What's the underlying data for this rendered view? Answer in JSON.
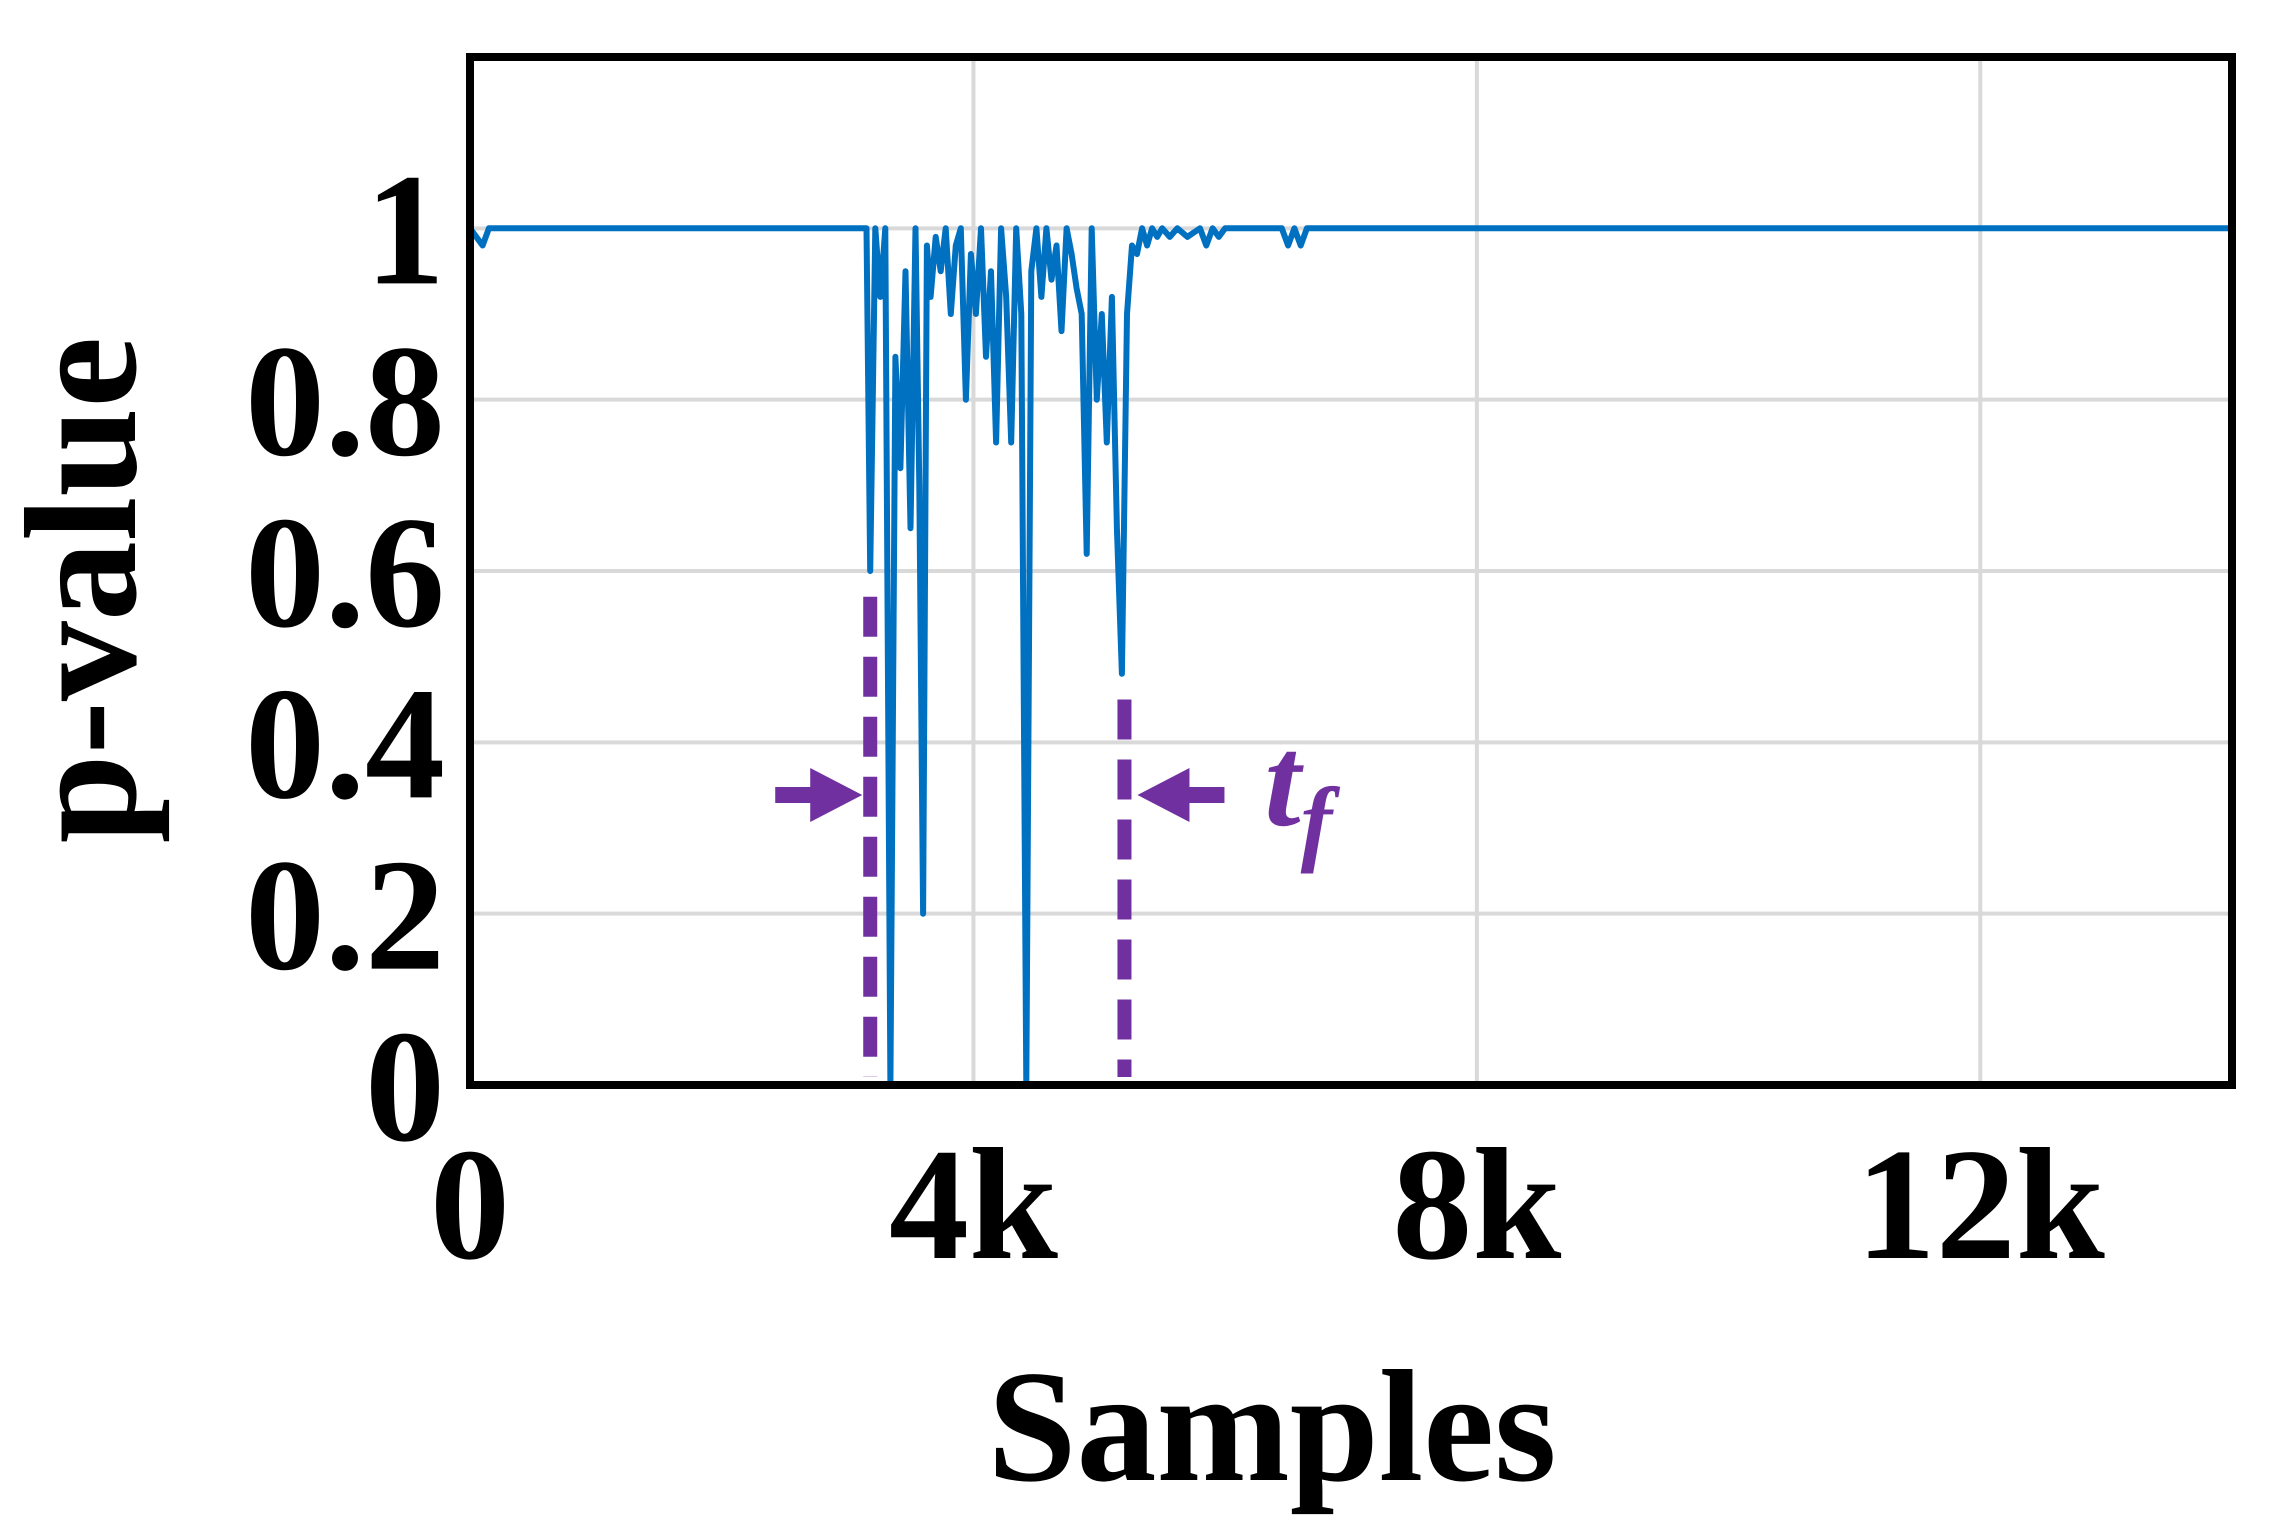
{
  "chart_data": {
    "type": "line",
    "xlabel": "Samples",
    "ylabel": "p-value",
    "xlim": [
      0,
      14000
    ],
    "ylim": [
      0,
      1.2
    ],
    "x_ticks": [
      0,
      4000,
      8000,
      12000
    ],
    "x_tick_labels": [
      "0",
      "4k",
      "8k",
      "12k"
    ],
    "y_ticks": [
      0,
      0.2,
      0.4,
      0.6,
      0.8,
      1
    ],
    "y_tick_labels": [
      "0",
      "0.2",
      "0.4",
      "0.6",
      "0.8",
      "1"
    ],
    "grid": true,
    "colors": {
      "line": "#0070c0",
      "annotation": "#7030a0",
      "grid": "#d9d9d9"
    },
    "series": [
      {
        "x": [
          0,
          100,
          150,
          200,
          3150,
          3180,
          3220,
          3260,
          3300,
          3340,
          3380,
          3420,
          3460,
          3500,
          3540,
          3570,
          3600,
          3630,
          3660,
          3700,
          3740,
          3780,
          3820,
          3860,
          3900,
          3940,
          3980,
          4020,
          4060,
          4100,
          4140,
          4180,
          4220,
          4260,
          4300,
          4340,
          4380,
          4420,
          4460,
          4500,
          4540,
          4580,
          4620,
          4660,
          4700,
          4740,
          4780,
          4820,
          4860,
          4900,
          4940,
          4980,
          5020,
          5060,
          5100,
          5140,
          5180,
          5220,
          5260,
          5300,
          5340,
          5380,
          5420,
          5460,
          5500,
          5560,
          5620,
          5700,
          5800,
          5850,
          5900,
          5950,
          6000,
          6100,
          6150,
          6200,
          6300,
          6400,
          6450,
          6500,
          6550,
          6600,
          6650,
          14000
        ],
        "values": [
          1.0,
          0.98,
          1.0,
          1.0,
          1.0,
          0.6,
          1.0,
          0.92,
          1.0,
          0.0,
          0.85,
          0.72,
          0.95,
          0.65,
          1.0,
          0.7,
          0.2,
          0.98,
          0.92,
          0.99,
          0.95,
          1.0,
          0.9,
          0.98,
          1.0,
          0.8,
          0.97,
          0.9,
          1.0,
          0.85,
          0.95,
          0.75,
          1.0,
          0.92,
          0.75,
          1.0,
          0.9,
          0.0,
          0.95,
          1.0,
          0.92,
          1.0,
          0.94,
          0.98,
          0.88,
          1.0,
          0.97,
          0.93,
          0.9,
          0.62,
          1.0,
          0.8,
          0.9,
          0.75,
          0.92,
          0.65,
          0.48,
          0.9,
          0.98,
          0.97,
          1.0,
          0.98,
          1.0,
          0.99,
          1.0,
          0.99,
          1.0,
          0.99,
          1.0,
          0.98,
          1.0,
          0.99,
          1.0,
          1.0,
          1.0,
          1.0,
          1.0,
          1.0,
          1.0,
          0.98,
          1.0,
          0.98,
          1.0,
          1.0
        ]
      }
    ],
    "markers": [
      {
        "x": 3180,
        "y_top": 0.57,
        "arrow_from": "left"
      },
      {
        "x": 5200,
        "y_top": 0.45,
        "arrow_from": "right",
        "label_main": "t",
        "label_sub": "f"
      }
    ]
  }
}
